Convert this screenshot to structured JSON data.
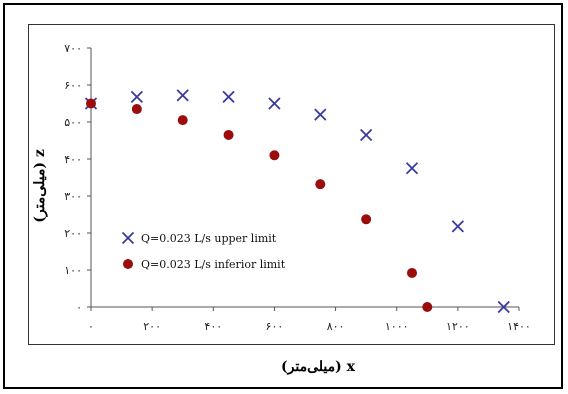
{
  "chart_data": {
    "type": "scatter",
    "xlabel": "x (میلی‌متر)",
    "ylabel": "z (میلی‌متر)",
    "xlim": [
      0,
      1400
    ],
    "ylim": [
      0,
      700
    ],
    "x_ticks": [
      0,
      200,
      400,
      600,
      800,
      1000,
      1200,
      1400
    ],
    "x_tick_labels": [
      "۰",
      "۲۰۰",
      "۴۰۰",
      "۶۰۰",
      "۸۰۰",
      "۱۰۰۰",
      "۱۲۰۰",
      "۱۴۰۰"
    ],
    "y_ticks": [
      0,
      100,
      200,
      300,
      400,
      500,
      600,
      700
    ],
    "y_tick_labels": [
      "۰",
      "۱۰۰",
      "۲۰۰",
      "۳۰۰",
      "۴۰۰",
      "۵۰۰",
      "۶۰۰",
      "۷۰۰"
    ],
    "grid": false,
    "legend_position": "left-center",
    "series": [
      {
        "name": "Q=0.023 L/s upper limit",
        "marker": "x",
        "color": "#3a3aa0",
        "x": [
          0,
          150,
          300,
          450,
          600,
          750,
          900,
          1050,
          1200,
          1350
        ],
        "y": [
          550,
          568,
          572,
          568,
          550,
          520,
          465,
          375,
          218,
          0
        ]
      },
      {
        "name": "Q=0.023 L/s inferior limit",
        "marker": "circle",
        "color": "#9b0d0d",
        "x": [
          0,
          150,
          300,
          450,
          600,
          750,
          900,
          1050,
          1100
        ],
        "y": [
          550,
          535,
          505,
          465,
          410,
          332,
          237,
          92,
          0
        ]
      }
    ]
  }
}
